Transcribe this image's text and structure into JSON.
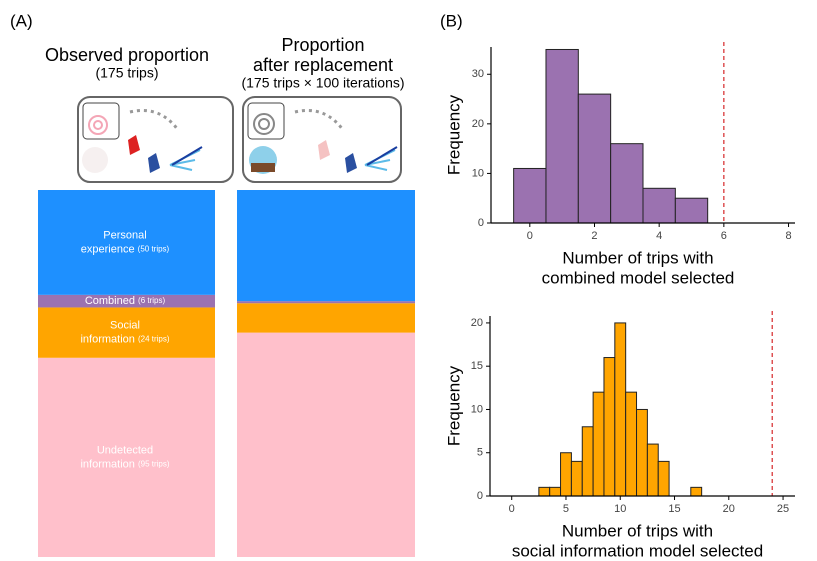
{
  "panel_labels": [
    "(A)",
    "(B)"
  ],
  "chart_data": [
    {
      "type": "stacked-bar",
      "title": [
        "Observed proportion"
      ],
      "subtitle": "(175 trips)",
      "series": [
        {
          "name": [
            "Undetected",
            "information"
          ],
          "color": "#ffc0cb",
          "values": [
            95
          ],
          "value_labels": [
            "(95 trips)"
          ]
        },
        {
          "name": [
            "Social",
            "information"
          ],
          "color": "#ffa500",
          "values": [
            24
          ],
          "value_labels": [
            "(24 trips)"
          ]
        },
        {
          "name": [
            "Combined"
          ],
          "color": "#9b72b0",
          "values": [
            6
          ],
          "value_labels": [
            "(6 trips)"
          ]
        },
        {
          "name": [
            "Personal",
            "experience"
          ],
          "color": "#1e90ff",
          "values": [
            50
          ],
          "value_labels": [
            "(50 trips)"
          ]
        }
      ]
    },
    {
      "type": "stacked-bar",
      "title": [
        "Proportion",
        "after replacement"
      ],
      "subtitle": "(175 trips × 100 iterations)",
      "series": [
        {
          "color": "#ffc0cb",
          "values": [
            107
          ]
        },
        {
          "color": "#ffa500",
          "values": [
            14
          ]
        },
        {
          "color": "#9b72b0",
          "values": [
            1
          ]
        },
        {
          "color": "#1e90ff",
          "values": [
            53
          ]
        }
      ]
    },
    {
      "type": "histogram",
      "color": "#9b72b0",
      "ylabel": "Frequency",
      "xlabel": [
        "Number of trips with",
        "combined model selected"
      ],
      "bins": [
        -0.5,
        0.5,
        1.5,
        2.5,
        3.5,
        4.5,
        5.5
      ],
      "values": [
        11,
        35,
        26,
        16,
        7,
        5
      ],
      "xlim": [
        -1.2,
        8.2
      ],
      "xticks": [
        0,
        2,
        4,
        6,
        8
      ],
      "ylim": [
        0,
        35.5
      ],
      "yticks": [
        0,
        10,
        20,
        30
      ],
      "vline": 6
    },
    {
      "type": "histogram",
      "color": "#ffa500",
      "ylabel": "Frequency",
      "xlabel": [
        "Number of trips with",
        "social information model selected"
      ],
      "bins": [
        2.5,
        3.5,
        4.5,
        5.5,
        6.5,
        7.5,
        8.5,
        9.5,
        10.5,
        11.5,
        12.5,
        13.5,
        14.5,
        15.5,
        16.5,
        17.5
      ],
      "values": [
        1,
        1,
        5,
        4,
        8,
        12,
        16,
        20,
        12,
        10,
        6,
        4,
        0,
        0,
        1
      ],
      "xlim": [
        -2,
        26.1
      ],
      "xticks": [
        0,
        5,
        10,
        15,
        20,
        25
      ],
      "ylim": [
        0,
        20.8
      ],
      "yticks": [
        0,
        5,
        10,
        15,
        20
      ],
      "vline": 24
    }
  ]
}
